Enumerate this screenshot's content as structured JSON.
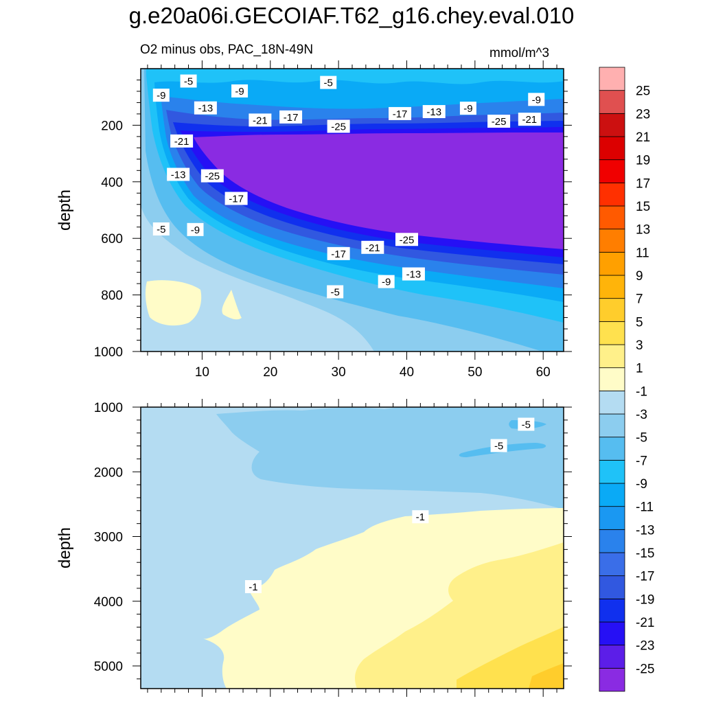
{
  "title": "g.e20a06i.GECOIAF.T62_g16.chey.eval.010",
  "chart_data": {
    "type": "heatmap",
    "left_string": "O2 minus obs, PAC_18N-49N",
    "units": "mmol/m^3",
    "colorbar": {
      "levels": [
        -25,
        -23,
        -21,
        -19,
        -17,
        -15,
        -13,
        -11,
        -9,
        -7,
        -5,
        -3,
        -1,
        1,
        3,
        5,
        7,
        9,
        11,
        13,
        15,
        17,
        19,
        21,
        23,
        25
      ],
      "colors": [
        "#8a2be2",
        "#5c1ee8",
        "#2610f5",
        "#1030ee",
        "#3158e0",
        "#3a6ee8",
        "#2a82ec",
        "#1a98f2",
        "#0aaaf6",
        "#1fc2f8",
        "#56bdf0",
        "#8ccdef",
        "#b4dcf2",
        "#fffcc8",
        "#fff08a",
        "#ffe14e",
        "#ffcd2c",
        "#ffb40a",
        "#ffa000",
        "#ff7e00",
        "#ff5a00",
        "#ff3000",
        "#f00000",
        "#dc0000",
        "#cc1010",
        "#e05050",
        "#ffb0b0"
      ]
    },
    "panels": [
      {
        "name": "upper",
        "xlim": [
          1,
          63
        ],
        "ylim": [
          0,
          1000
        ],
        "ylabel": "depth",
        "xticks": [
          10,
          20,
          30,
          40,
          50,
          60
        ],
        "yticks": [
          200,
          400,
          600,
          800,
          1000
        ],
        "contour_labels": [
          {
            "text": "-5",
            "x": 8,
            "y": 45
          },
          {
            "text": "-9",
            "x": 4,
            "y": 95
          },
          {
            "text": "-9",
            "x": 15.5,
            "y": 80
          },
          {
            "text": "-5",
            "x": 28.5,
            "y": 50
          },
          {
            "text": "-13",
            "x": 10.5,
            "y": 140
          },
          {
            "text": "-21",
            "x": 18.5,
            "y": 183
          },
          {
            "text": "-17",
            "x": 23,
            "y": 172
          },
          {
            "text": "-25",
            "x": 30,
            "y": 205
          },
          {
            "text": "-17",
            "x": 39,
            "y": 160
          },
          {
            "text": "-13",
            "x": 44,
            "y": 153
          },
          {
            "text": "-9",
            "x": 49,
            "y": 141
          },
          {
            "text": "-25",
            "x": 53.5,
            "y": 187
          },
          {
            "text": "-21",
            "x": 58,
            "y": 180
          },
          {
            "text": "-9",
            "x": 59,
            "y": 110
          },
          {
            "text": "-21",
            "x": 7,
            "y": 257
          },
          {
            "text": "-13",
            "x": 6.5,
            "y": 375
          },
          {
            "text": "-25",
            "x": 11.5,
            "y": 380
          },
          {
            "text": "-17",
            "x": 15,
            "y": 460
          },
          {
            "text": "-5",
            "x": 4,
            "y": 568
          },
          {
            "text": "-9",
            "x": 9,
            "y": 570
          },
          {
            "text": "-21",
            "x": 35,
            "y": 633
          },
          {
            "text": "-25",
            "x": 40,
            "y": 605
          },
          {
            "text": "-17",
            "x": 30,
            "y": 655
          },
          {
            "text": "-13",
            "x": 41,
            "y": 727
          },
          {
            "text": "-9",
            "x": 37,
            "y": 754
          },
          {
            "text": "-5",
            "x": 29.5,
            "y": 790
          }
        ]
      },
      {
        "name": "lower",
        "xlim": [
          1,
          63
        ],
        "ylim": [
          1000,
          5350
        ],
        "ylabel": "depth",
        "yticks": [
          1000,
          2000,
          3000,
          4000,
          5000
        ],
        "contour_labels": [
          {
            "text": "-5",
            "x": 57.5,
            "y": 1270
          },
          {
            "text": "-5",
            "x": 53.5,
            "y": 1600
          },
          {
            "text": "-1",
            "x": 42,
            "y": 2700
          },
          {
            "text": "-1",
            "x": 17.5,
            "y": 3780
          }
        ]
      }
    ]
  }
}
